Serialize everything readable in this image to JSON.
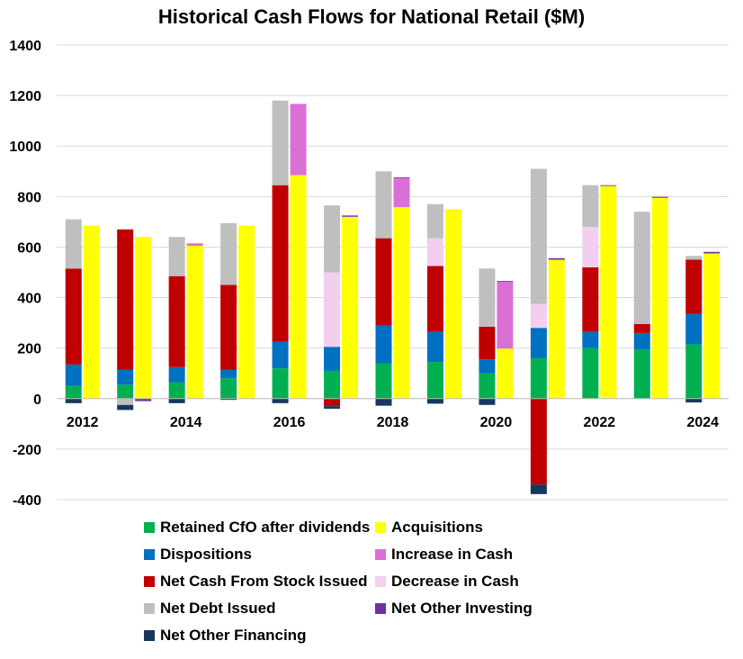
{
  "chart_data": {
    "type": "bar",
    "title": "Historical Cash Flows for National Retail ($M)",
    "xlabel": "",
    "ylabel": "",
    "ylim": [
      -400,
      1400
    ],
    "yticks": [
      -400,
      -200,
      0,
      200,
      400,
      600,
      800,
      1000,
      1200,
      1400
    ],
    "categories": [
      "2012",
      "2013",
      "2014",
      "2015",
      "2016",
      "2017",
      "2018",
      "2019",
      "2020",
      "2021",
      "2022",
      "2023",
      "2024"
    ],
    "xtick_labels": [
      "2012",
      "",
      "2014",
      "",
      "2016",
      "",
      "2018",
      "",
      "2020",
      "",
      "2022",
      "",
      "2024"
    ],
    "grid": "horizontal",
    "legend_position": "bottom",
    "sources_series": [
      {
        "name": "Retained CfO after dividends",
        "color": "#00B050",
        "values": [
          50,
          55,
          65,
          80,
          120,
          110,
          140,
          145,
          100,
          160,
          200,
          195,
          215
        ]
      },
      {
        "name": "Dispositions",
        "color": "#0070C0",
        "values": [
          85,
          60,
          60,
          35,
          105,
          95,
          150,
          120,
          55,
          120,
          65,
          65,
          120
        ]
      },
      {
        "name": "Net Cash From Stock Issued",
        "color": "#C00000",
        "values": [
          380,
          555,
          360,
          335,
          620,
          -30,
          345,
          260,
          130,
          -340,
          255,
          35,
          215
        ]
      },
      {
        "name": "Decrease in Cash",
        "color": "#F2CEEF",
        "values": [
          0,
          0,
          0,
          0,
          0,
          295,
          0,
          110,
          0,
          95,
          160,
          0,
          0
        ]
      },
      {
        "name": "Net Debt Issued",
        "color": "#BFBFBF",
        "values": [
          195,
          -25,
          155,
          245,
          335,
          265,
          265,
          135,
          230,
          535,
          165,
          445,
          15
        ]
      },
      {
        "name": "Net Other Financing",
        "color": "#17375E",
        "values": [
          -18,
          -20,
          -18,
          -5,
          -18,
          -10,
          -28,
          -20,
          -25,
          -38,
          0,
          0,
          -15
        ]
      }
    ],
    "uses_series": [
      {
        "name": "Acquisitions",
        "color": "#FFFF00",
        "values": [
          685,
          640,
          605,
          685,
          885,
          720,
          758,
          750,
          198,
          550,
          842,
          795,
          575
        ]
      },
      {
        "name": "Increase in Cash",
        "color": "#DA70D6",
        "values": [
          0,
          0,
          10,
          0,
          282,
          0,
          115,
          0,
          265,
          0,
          0,
          0,
          0
        ]
      },
      {
        "name": "Net Other Investing",
        "color": "#7030A0",
        "values": [
          0,
          -10,
          0,
          0,
          0,
          5,
          3,
          0,
          3,
          6,
          3,
          4,
          6
        ]
      }
    ]
  },
  "legend": [
    {
      "label": "Retained CfO after dividends",
      "color": "#00B050"
    },
    {
      "label": "Acquisitions",
      "color": "#FFFF00"
    },
    {
      "label": "Dispositions",
      "color": "#0070C0"
    },
    {
      "label": "Increase in Cash",
      "color": "#DA70D6"
    },
    {
      "label": "Net Cash From Stock Issued",
      "color": "#C00000"
    },
    {
      "label": "Decrease in Cash",
      "color": "#F2CEEF"
    },
    {
      "label": "Net Debt Issued",
      "color": "#BFBFBF"
    },
    {
      "label": "Net Other Investing",
      "color": "#7030A0"
    },
    {
      "label": "Net Other Financing",
      "color": "#17375E"
    }
  ]
}
